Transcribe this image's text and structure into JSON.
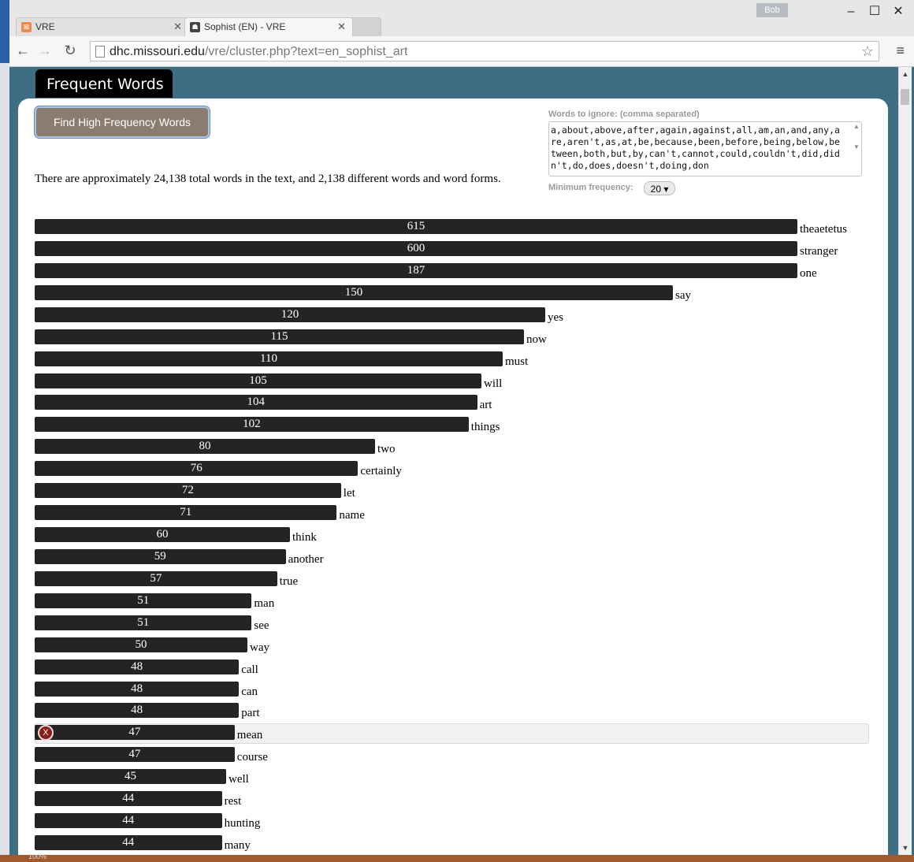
{
  "browser": {
    "tabs": [
      {
        "title": "VRE",
        "active": false
      },
      {
        "title": "Sophist (EN) - VRE",
        "active": true
      }
    ],
    "profile": "Bob",
    "url_host": "dhc.missouri.edu",
    "url_path": "/vre/cluster.php?text=en_sophist_art",
    "window_controls": {
      "minimize": "–",
      "maximize": "☐",
      "close": "✕"
    },
    "zoom": "100%"
  },
  "page": {
    "title": "Frequent Words",
    "find_button": "Find High Frequency Words",
    "ignore_label": "Words to ignore: (comma separated)",
    "ignore_words": "a,about,above,after,again,against,all,am,an,and,any,are,aren't,as,at,be,because,been,before,being,below,between,both,but,by,can't,cannot,could,couldn't,did,didn't,do,does,doesn't,doing,don",
    "min_freq_label": "Minimum frequency:",
    "min_freq_value": "20 ▾",
    "summary": "There are approximately 24,138 total words in the text, and 2,138 different words and word forms."
  },
  "chart_data": {
    "type": "bar",
    "orientation": "horizontal",
    "categories": [
      "theaetetus",
      "stranger",
      "one",
      "say",
      "yes",
      "now",
      "must",
      "will",
      "art",
      "things",
      "two",
      "certainly",
      "let",
      "name",
      "think",
      "another",
      "true",
      "man",
      "see",
      "way",
      "call",
      "can",
      "part",
      "mean",
      "course",
      "well",
      "rest",
      "hunting",
      "many"
    ],
    "values": [
      615,
      600,
      187,
      150,
      120,
      115,
      110,
      105,
      104,
      102,
      80,
      76,
      72,
      71,
      60,
      59,
      57,
      51,
      51,
      50,
      48,
      48,
      48,
      47,
      47,
      45,
      44,
      44,
      44
    ],
    "highlighted_index": 23,
    "remove_label": "X"
  },
  "colors": {
    "bar": "#242424",
    "button": "#8c7c6f",
    "header_bg": "#3d6e84",
    "remove": "#8b1c1c"
  }
}
